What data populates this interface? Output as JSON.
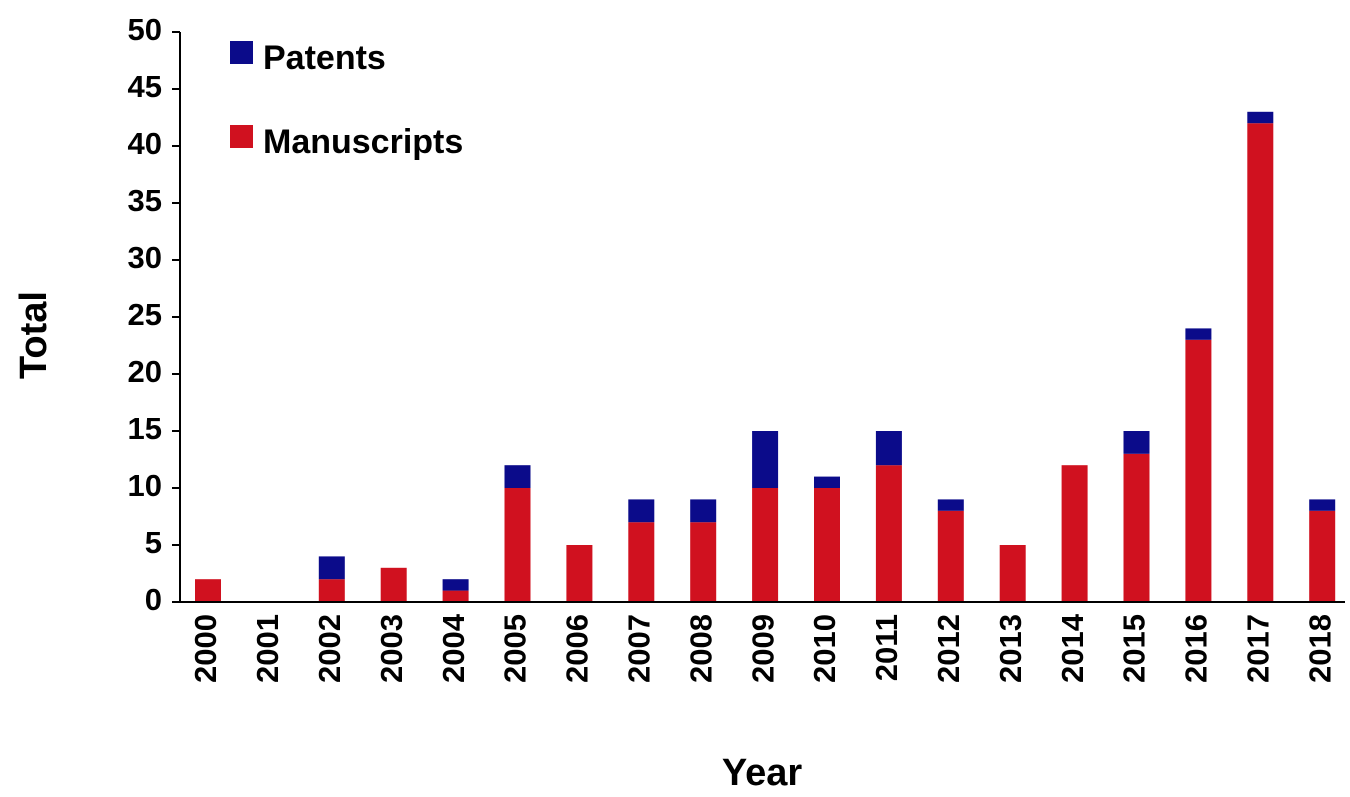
{
  "chart_data": {
    "type": "stacked_bar",
    "x_label": "Year",
    "y_label": "Total",
    "categories": [
      "2000",
      "2001",
      "2002",
      "2003",
      "2004",
      "2005",
      "2006",
      "2007",
      "2008",
      "2009",
      "2010",
      "2011",
      "2012",
      "2013",
      "2014",
      "2015",
      "2016",
      "2017",
      "2018"
    ],
    "series": [
      {
        "name": "Patents",
        "color": "#0b0b8a",
        "values": [
          0,
          0,
          2,
          0,
          1,
          2,
          0,
          2,
          2,
          5,
          1,
          3,
          1,
          0,
          0,
          2,
          1,
          1,
          1
        ]
      },
      {
        "name": "Manuscripts",
        "color": "#d0111f",
        "values": [
          2,
          0,
          2,
          3,
          1,
          10,
          5,
          7,
          7,
          10,
          10,
          12,
          8,
          5,
          12,
          13,
          23,
          42,
          8
        ]
      }
    ],
    "ylim": [
      0,
      50
    ],
    "yticks": [
      0,
      5,
      10,
      15,
      20,
      25,
      30,
      35,
      40,
      45,
      50
    ],
    "legend": "upper left"
  }
}
